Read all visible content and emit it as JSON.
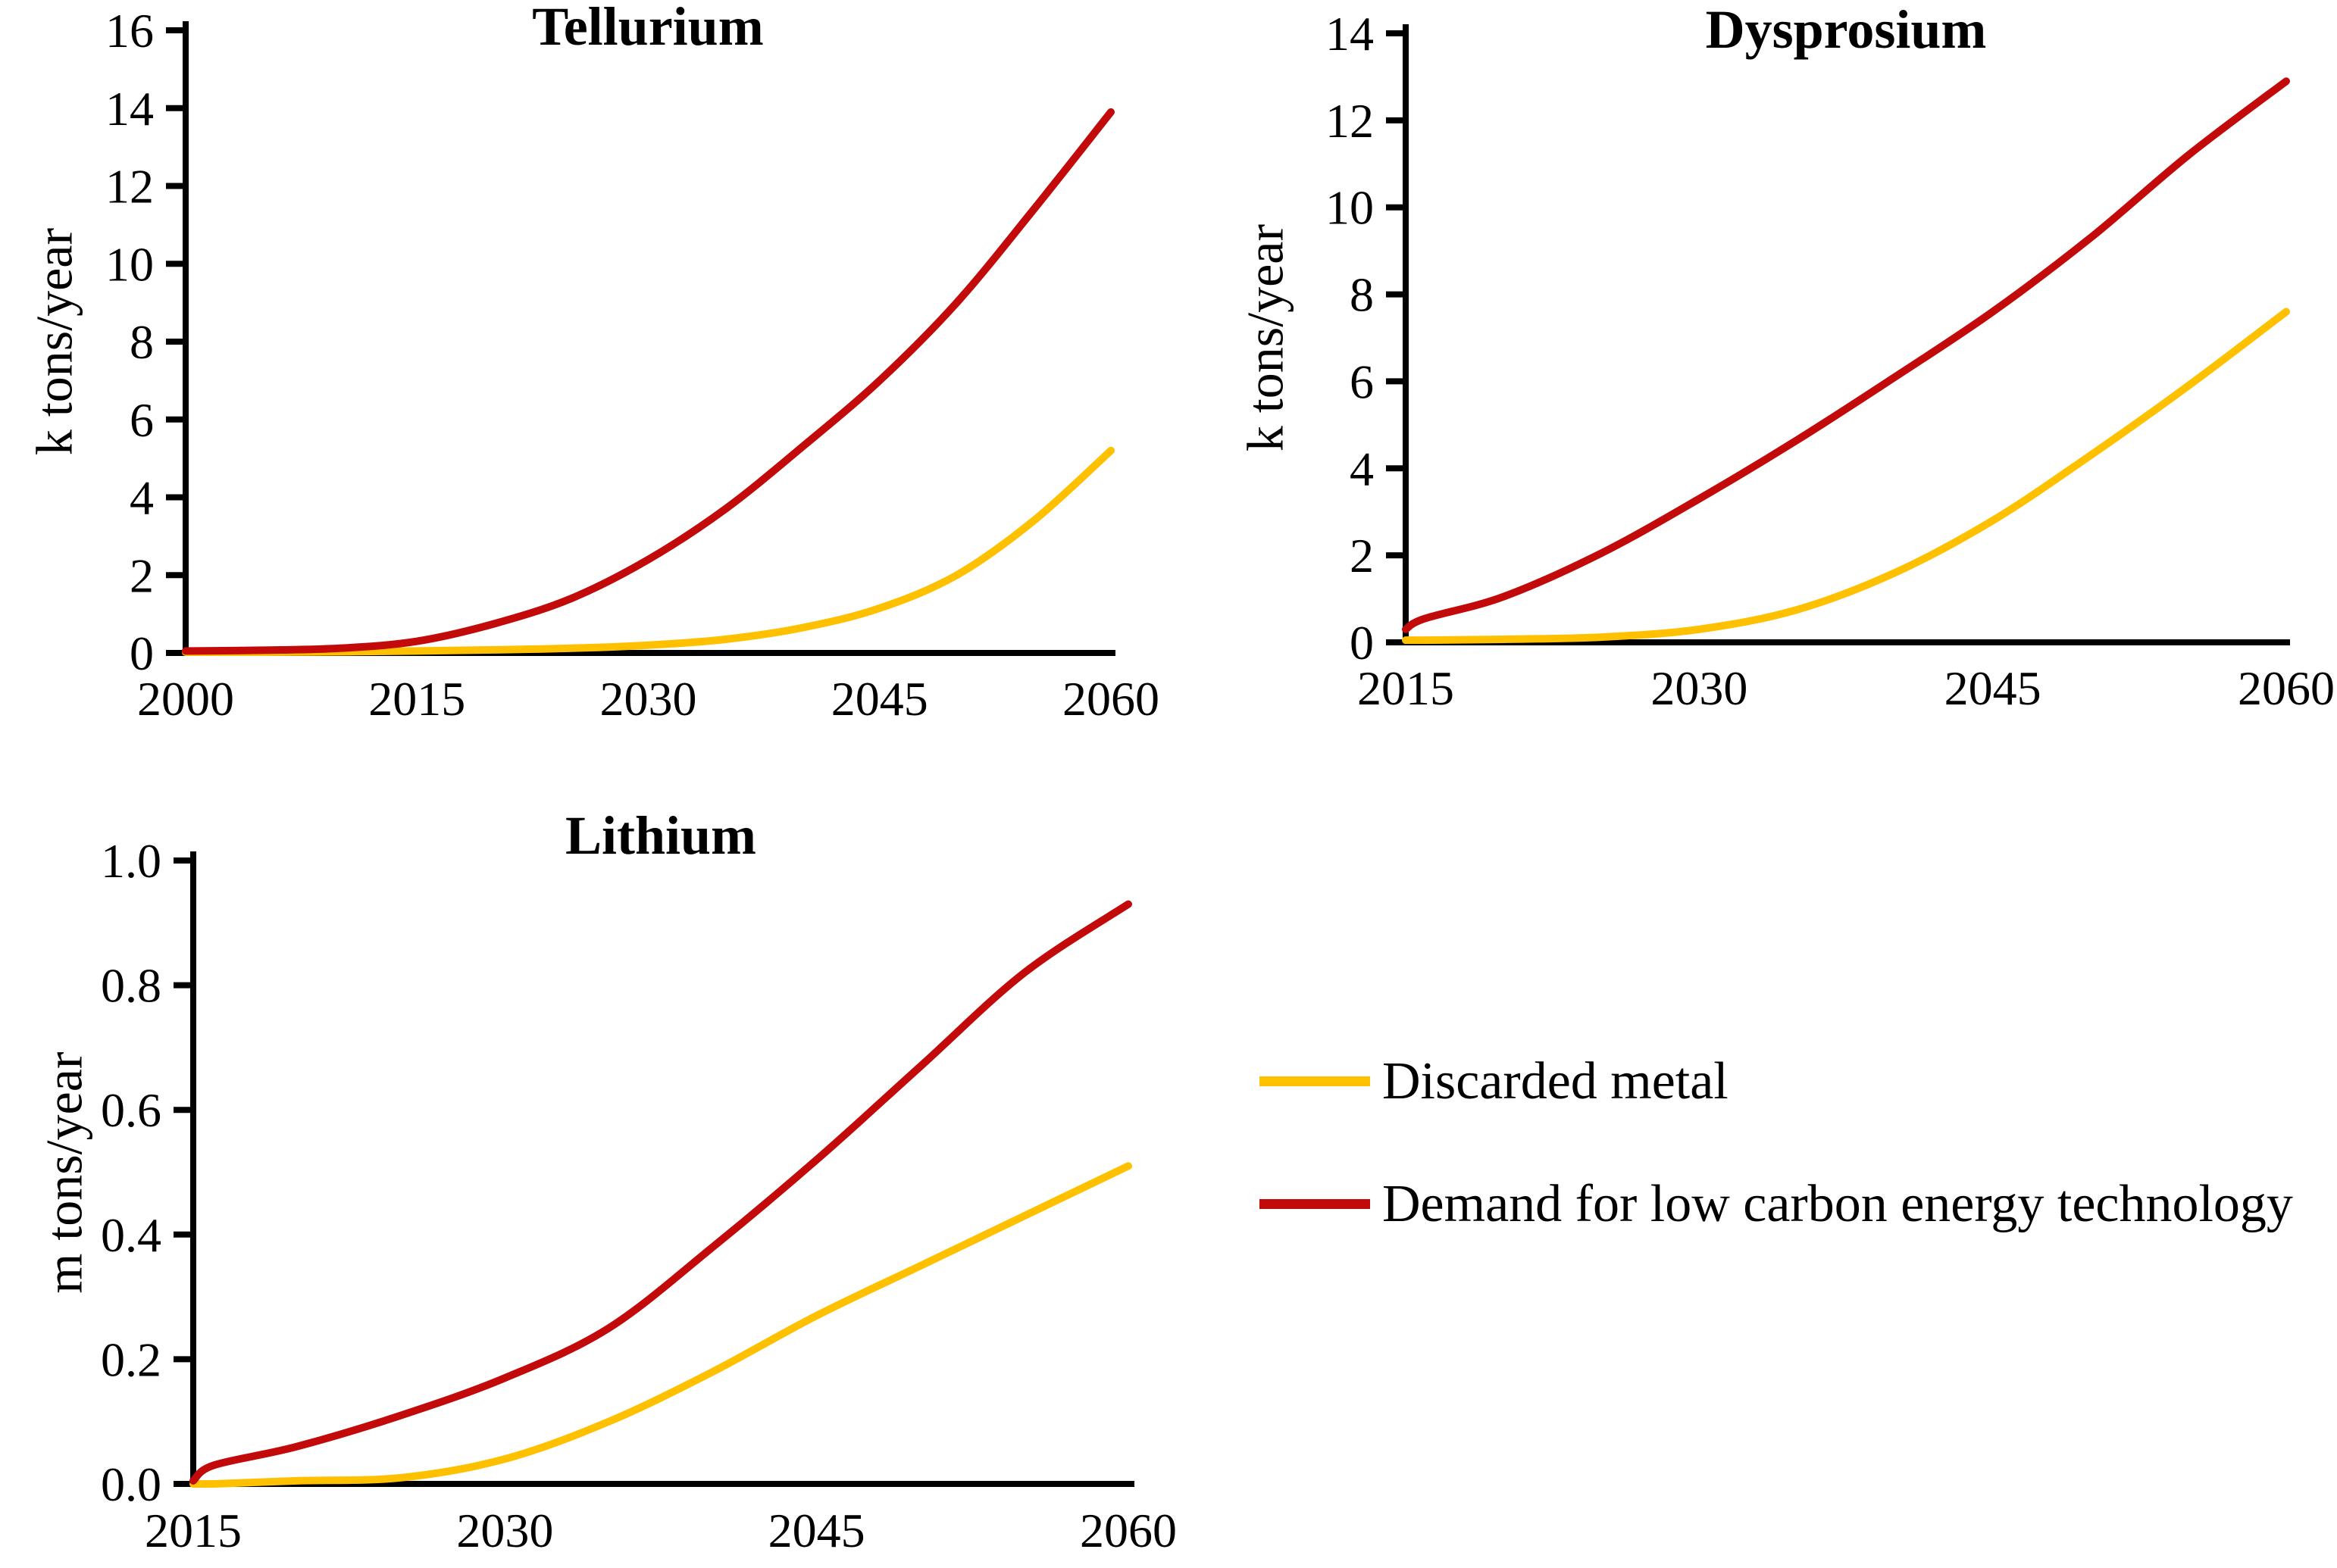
{
  "figure": {
    "background": "#ffffff",
    "axis_color": "#000000",
    "legend": {
      "items": [
        {
          "id": "discarded-metal",
          "label": "Discarded metal",
          "color": "#FFC000"
        },
        {
          "id": "demand-low-carbon",
          "label": "Demand for low carbon energy technology",
          "color": "#C20A0A"
        }
      ]
    }
  },
  "chart_data": [
    {
      "type": "line",
      "title": "Tellurium",
      "xlabel": "",
      "ylabel": "k tons/year",
      "xlim": [
        2000,
        2060
      ],
      "ylim": [
        0,
        16
      ],
      "grid": false,
      "legend_position": "shared-bottom-right",
      "xticks": [
        2000,
        2015,
        2030,
        2045,
        2060
      ],
      "xtick_labels": [
        "2000",
        "2015",
        "2030",
        "2045",
        "2060"
      ],
      "yticks": [
        0,
        2,
        4,
        6,
        8,
        10,
        12,
        14,
        16
      ],
      "ytick_labels": [
        "0",
        "2",
        "4",
        "6",
        "8",
        "10",
        "12",
        "14",
        "16"
      ],
      "x": [
        2000,
        2005,
        2010,
        2015,
        2020,
        2025,
        2030,
        2035,
        2040,
        2045,
        2050,
        2055,
        2060
      ],
      "series": [
        {
          "name": "Discarded metal",
          "color": "#FFC000",
          "values": [
            0.02,
            0.02,
            0.03,
            0.05,
            0.08,
            0.12,
            0.2,
            0.35,
            0.65,
            1.15,
            2.0,
            3.4,
            5.2
          ]
        },
        {
          "name": "Demand for low carbon energy technology",
          "color": "#C20A0A",
          "values": [
            0.05,
            0.07,
            0.12,
            0.3,
            0.75,
            1.4,
            2.4,
            3.7,
            5.3,
            7.0,
            9.0,
            11.4,
            13.9
          ]
        }
      ]
    },
    {
      "type": "line",
      "title": "Dysprosium",
      "xlabel": "",
      "ylabel": "k tons/year",
      "xlim": [
        2015,
        2060
      ],
      "ylim": [
        0,
        14
      ],
      "grid": false,
      "legend_position": "shared-bottom-right",
      "xticks": [
        2015,
        2030,
        2045,
        2060
      ],
      "xtick_labels": [
        "2015",
        "2030",
        "2045",
        "2060"
      ],
      "yticks": [
        0,
        2,
        4,
        6,
        8,
        10,
        12,
        14
      ],
      "ytick_labels": [
        "0",
        "2",
        "4",
        "6",
        "8",
        "10",
        "12",
        "14"
      ],
      "x": [
        2015,
        2016,
        2020,
        2025,
        2030,
        2035,
        2040,
        2045,
        2050,
        2055,
        2060
      ],
      "series": [
        {
          "name": "Discarded metal",
          "color": "#FFC000",
          "values": [
            0.05,
            0.05,
            0.07,
            0.12,
            0.3,
            0.75,
            1.6,
            2.8,
            4.3,
            5.9,
            7.6
          ]
        },
        {
          "name": "Demand for low carbon energy technology",
          "color": "#C20A0A",
          "values": [
            0.3,
            0.55,
            1.05,
            2.05,
            3.3,
            4.65,
            6.1,
            7.6,
            9.3,
            11.2,
            12.9
          ]
        }
      ]
    },
    {
      "type": "line",
      "title": "Lithium",
      "xlabel": "",
      "ylabel": "m tons/year",
      "xlim": [
        2015,
        2060
      ],
      "ylim": [
        0,
        1.0
      ],
      "grid": false,
      "legend_position": "shared-bottom-right",
      "xticks": [
        2015,
        2030,
        2045,
        2060
      ],
      "xtick_labels": [
        "2015",
        "2030",
        "2045",
        "2060"
      ],
      "yticks": [
        0,
        0.2,
        0.4,
        0.6,
        0.8,
        1.0
      ],
      "ytick_labels": [
        "0.0",
        "0.2",
        "0.4",
        "0.6",
        "0.8",
        "1.0"
      ],
      "x": [
        2015,
        2016,
        2020,
        2025,
        2030,
        2035,
        2040,
        2045,
        2050,
        2055,
        2060
      ],
      "series": [
        {
          "name": "Discarded metal",
          "color": "#FFC000",
          "values": [
            0.0,
            0.0,
            0.005,
            0.01,
            0.04,
            0.1,
            0.18,
            0.27,
            0.35,
            0.43,
            0.51
          ]
        },
        {
          "name": "Demand for low carbon energy technology",
          "color": "#C20A0A",
          "values": [
            0.005,
            0.03,
            0.06,
            0.11,
            0.17,
            0.25,
            0.38,
            0.52,
            0.67,
            0.82,
            0.93
          ]
        }
      ]
    }
  ]
}
